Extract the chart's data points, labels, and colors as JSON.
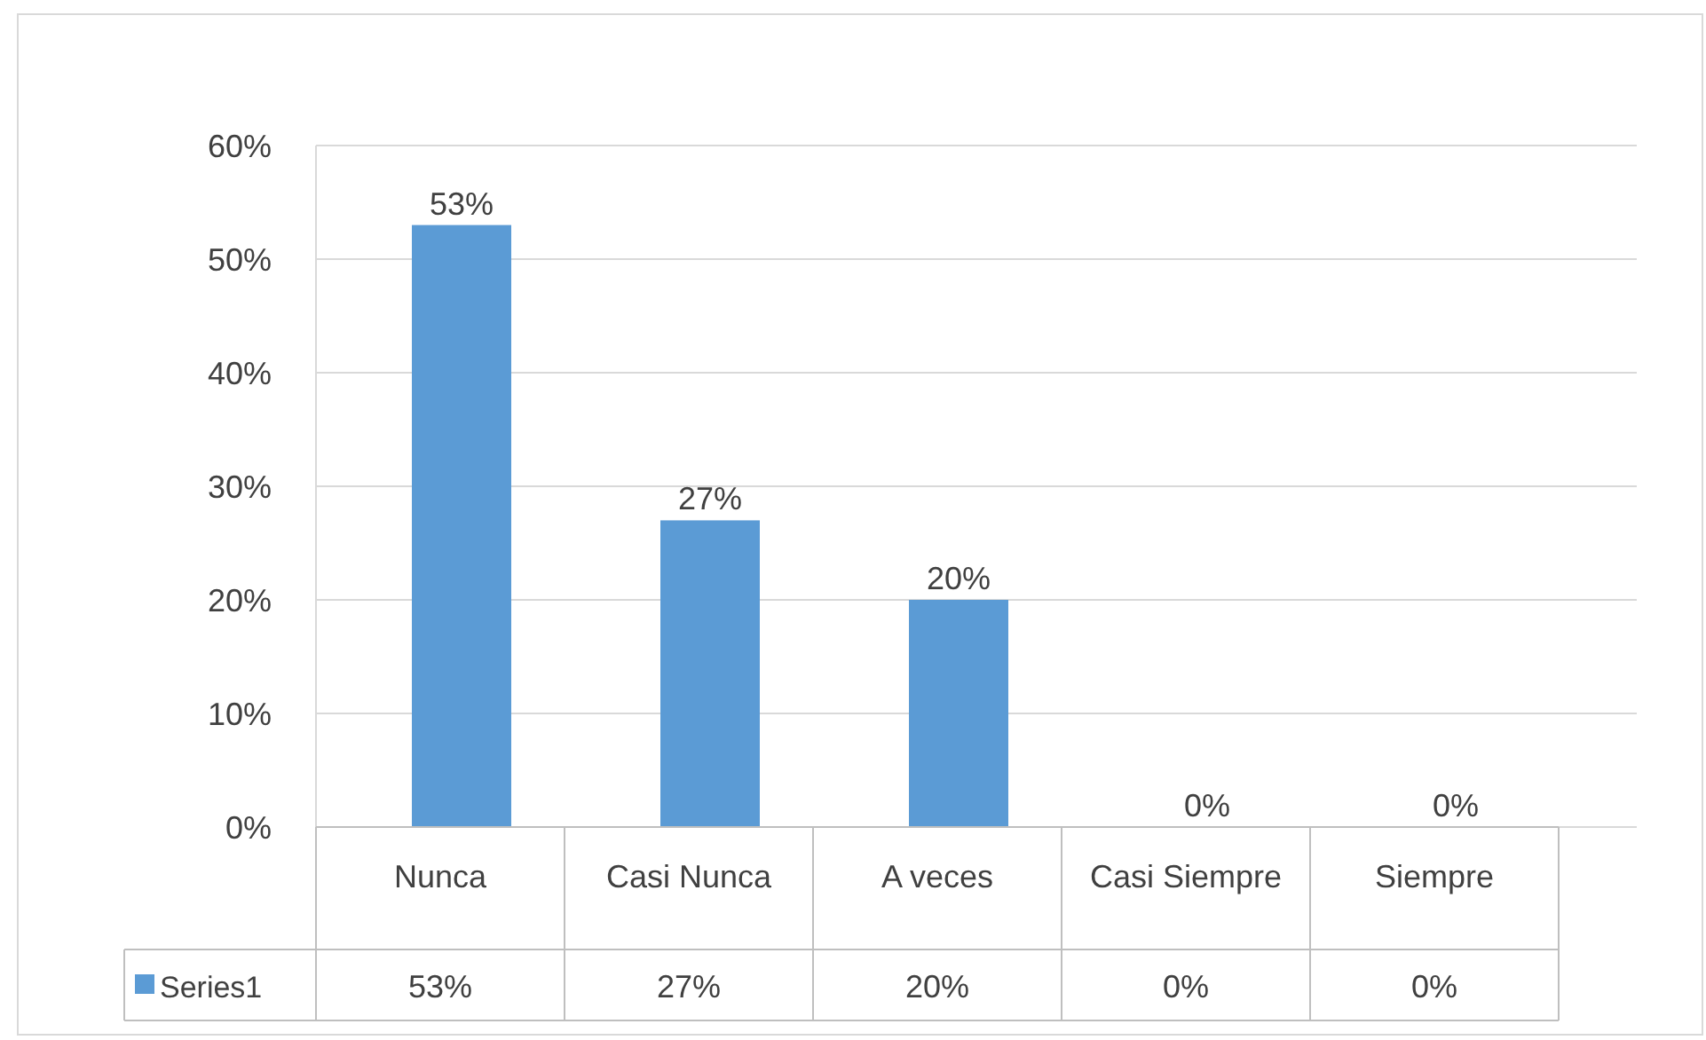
{
  "chart_data": {
    "type": "bar",
    "categories": [
      "Nunca",
      "Casi Nunca",
      "A veces",
      "Casi Siempre",
      "Siempre"
    ],
    "series": [
      {
        "name": "Series1",
        "color": "#5b9bd5",
        "values": [
          53,
          27,
          20,
          0,
          0
        ],
        "value_labels": [
          "53%",
          "27%",
          "20%",
          "0%",
          "0%"
        ]
      }
    ],
    "ylim": [
      0,
      60
    ],
    "yticks": [
      {
        "value": 0,
        "label": "0%"
      },
      {
        "value": 10,
        "label": "10%"
      },
      {
        "value": 20,
        "label": "20%"
      },
      {
        "value": 30,
        "label": "30%"
      },
      {
        "value": 40,
        "label": "40%"
      },
      {
        "value": 50,
        "label": "50%"
      },
      {
        "value": 60,
        "label": "60%"
      }
    ],
    "grid": "y",
    "legend": "bottom"
  }
}
